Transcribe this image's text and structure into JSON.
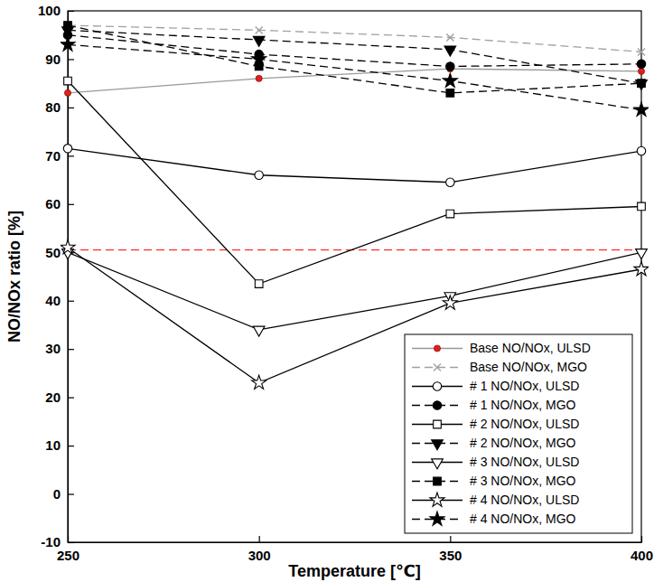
{
  "chart_data": {
    "type": "line",
    "x_label": "Temperature [℃]",
    "y_label": "NO/NOx ratio [%]",
    "x": [
      250,
      300,
      350,
      400
    ],
    "xlim": [
      250,
      400
    ],
    "xticks": [
      250,
      300,
      350,
      400
    ],
    "ylim": [
      -10,
      100
    ],
    "yticks": [
      -10,
      0,
      10,
      20,
      30,
      40,
      50,
      60,
      70,
      80,
      90,
      100
    ],
    "legend": "lower right",
    "hlines": [
      {
        "value": 50.5,
        "color": "#ff0000",
        "line_style": "dashed"
      }
    ],
    "series": [
      {
        "name": "Base NO/NOx, ULSD",
        "color": "#999999",
        "line_style": "solid",
        "marker": "dot",
        "values": [
          83,
          86,
          88,
          87.5
        ]
      },
      {
        "name": "Base NO/NOx, MGO",
        "color": "#a0a0a0",
        "line_style": "dashed",
        "marker": "x",
        "values": [
          97,
          96,
          94.5,
          91.5
        ]
      },
      {
        "name": "# 1 NO/NOx, ULSD",
        "color": "#000000",
        "line_style": "solid",
        "marker": "circle-open",
        "values": [
          71.5,
          66,
          64.5,
          71
        ]
      },
      {
        "name": "# 1 NO/NOx, MGO",
        "color": "#000000",
        "line_style": "dashed",
        "marker": "circle",
        "values": [
          95,
          91,
          88.5,
          89
        ]
      },
      {
        "name": "# 2 NO/NOx, ULSD",
        "color": "#000000",
        "line_style": "solid",
        "marker": "square-open",
        "values": [
          85.5,
          43.5,
          58,
          59.5
        ]
      },
      {
        "name": "# 2 NO/NOx, MGO",
        "color": "#000000",
        "line_style": "dashed",
        "marker": "triangle-down",
        "values": [
          96,
          94,
          92,
          85
        ]
      },
      {
        "name": "# 3 NO/NOx, ULSD",
        "color": "#000000",
        "line_style": "solid",
        "marker": "triangle-down-open",
        "values": [
          50,
          34,
          41,
          50
        ]
      },
      {
        "name": "# 3 NO/NOx, MGO",
        "color": "#000000",
        "line_style": "dashed",
        "marker": "square",
        "values": [
          97,
          88.5,
          83,
          85
        ]
      },
      {
        "name": "# 4 NO/NOx, ULSD",
        "color": "#000000",
        "line_style": "solid",
        "marker": "star-open",
        "values": [
          51,
          23,
          39.5,
          46.5
        ]
      },
      {
        "name": "# 4 NO/NOx, MGO",
        "color": "#000000",
        "line_style": "dashed",
        "marker": "star",
        "values": [
          93,
          90,
          85.5,
          79.5
        ]
      }
    ]
  }
}
